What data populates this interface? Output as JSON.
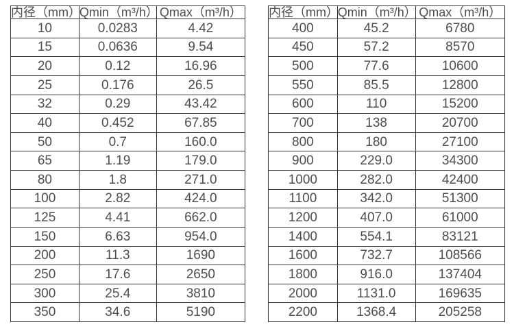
{
  "page": {
    "background_color": "#ffffff",
    "text_color": "#4d4d4d",
    "border_color": "#333333"
  },
  "tables": [
    {
      "name": "flow-spec-table-small-diameters",
      "headers": [
        "内径（mm）",
        "Qmin（m³/h）",
        "Qmax（m³/h）"
      ],
      "rows": [
        [
          "10",
          "0.0283",
          "4.42"
        ],
        [
          "15",
          "0.0636",
          "9.54"
        ],
        [
          "20",
          "0.12",
          "16.96"
        ],
        [
          "25",
          "0.176",
          "26.5"
        ],
        [
          "32",
          "0.29",
          "43.42"
        ],
        [
          "40",
          "0.452",
          "67.85"
        ],
        [
          "50",
          "0.7",
          "160.0"
        ],
        [
          "65",
          "1.19",
          "179.0"
        ],
        [
          "80",
          "1.8",
          "271.0"
        ],
        [
          "100",
          "2.82",
          "424.0"
        ],
        [
          "125",
          "4.41",
          "662.0"
        ],
        [
          "150",
          "6.63",
          "954.0"
        ],
        [
          "200",
          "11.3",
          "1690"
        ],
        [
          "250",
          "17.6",
          "2650"
        ],
        [
          "300",
          "25.4",
          "3810"
        ],
        [
          "350",
          "34.6",
          "5190"
        ]
      ]
    },
    {
      "name": "flow-spec-table-large-diameters",
      "headers": [
        "内径（mm）",
        "Qmin（m³/h）",
        "Qmax（m³/h）"
      ],
      "rows": [
        [
          "400",
          "45.2",
          "6780"
        ],
        [
          "450",
          "57.2",
          "8570"
        ],
        [
          "500",
          "77.6",
          "10600"
        ],
        [
          "550",
          "85.5",
          "12800"
        ],
        [
          "600",
          "110",
          "15200"
        ],
        [
          "700",
          "138",
          "20700"
        ],
        [
          "800",
          "180",
          "27100"
        ],
        [
          "900",
          "229.0",
          "34300"
        ],
        [
          "1000",
          "282.0",
          "42400"
        ],
        [
          "1100",
          "342.0",
          "51300"
        ],
        [
          "1200",
          "407.0",
          "61000"
        ],
        [
          "1400",
          "554.1",
          "83121"
        ],
        [
          "1600",
          "732.7",
          "108566"
        ],
        [
          "1800",
          "916.0",
          "137404"
        ],
        [
          "2000",
          "1131.0",
          "169635"
        ],
        [
          "2200",
          "1368.4",
          "205258"
        ]
      ]
    }
  ]
}
